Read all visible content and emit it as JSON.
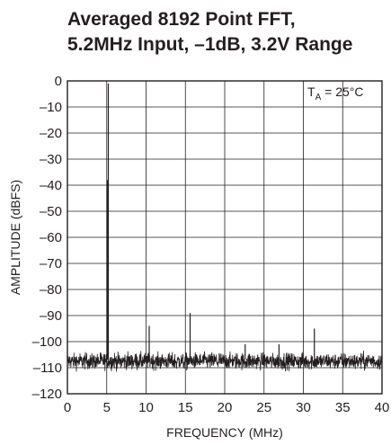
{
  "chart_data": {
    "type": "line",
    "title_line1": "Averaged 8192 Point FFT,",
    "title_line2": "5.2MHz Input, –1dB, 3.2V Range",
    "xlabel": "FREQUENCY (MHz)",
    "ylabel": "AMPLITUDE (dBFS)",
    "annotation": {
      "prefix": "T",
      "sub": "A",
      "suffix": " = 25°C"
    },
    "xlim": [
      0,
      40
    ],
    "ylim": [
      -120,
      0
    ],
    "x_ticks": [
      {
        "value": 0,
        "label": "0"
      },
      {
        "value": 5,
        "label": "5"
      },
      {
        "value": 10,
        "label": "10"
      },
      {
        "value": 15,
        "label": "15"
      },
      {
        "value": 20,
        "label": "20"
      },
      {
        "value": 25,
        "label": "25"
      },
      {
        "value": 30,
        "label": "30"
      },
      {
        "value": 35,
        "label": "35"
      },
      {
        "value": 40,
        "label": "40"
      }
    ],
    "y_ticks": [
      {
        "value": 0,
        "label": "0"
      },
      {
        "value": -10,
        "label": "–10"
      },
      {
        "value": -20,
        "label": "–20"
      },
      {
        "value": -30,
        "label": "–30"
      },
      {
        "value": -40,
        "label": "–40"
      },
      {
        "value": -50,
        "label": "–50"
      },
      {
        "value": -60,
        "label": "–60"
      },
      {
        "value": -70,
        "label": "–70"
      },
      {
        "value": -80,
        "label": "–80"
      },
      {
        "value": -90,
        "label": "–90"
      },
      {
        "value": -100,
        "label": "–100"
      },
      {
        "value": -110,
        "label": "–110"
      },
      {
        "value": -120,
        "label": "–120"
      }
    ],
    "grid": true,
    "noise_floor": {
      "level": -107,
      "range": [
        -112,
        -103
      ]
    },
    "peaks": [
      {
        "x": 5.2,
        "y": -1
      },
      {
        "x": 5.1,
        "y": -38
      },
      {
        "x": 10.4,
        "y": -94
      },
      {
        "x": 15.6,
        "y": -89
      },
      {
        "x": 22.6,
        "y": -101
      },
      {
        "x": 26.9,
        "y": -101
      },
      {
        "x": 31.4,
        "y": -95
      }
    ],
    "line_color": "#231f20"
  }
}
